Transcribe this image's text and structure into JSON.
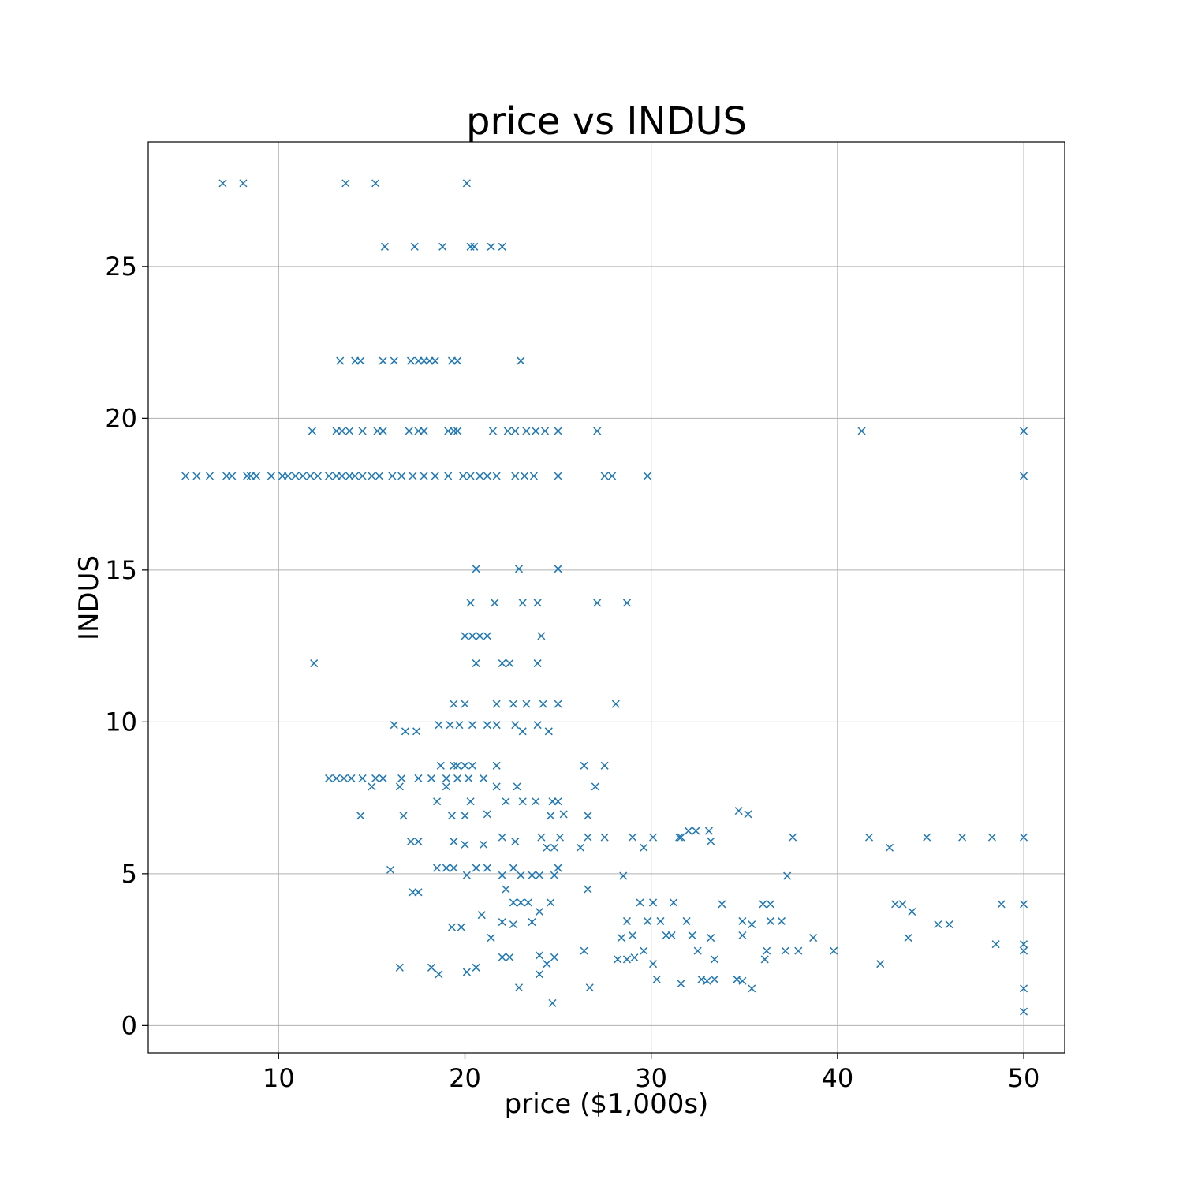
{
  "chart_data": {
    "type": "scatter",
    "title": "price vs INDUS",
    "xlabel": "price ($1,000s)",
    "ylabel": "INDUS",
    "xlim": [
      3,
      52.2
    ],
    "ylim": [
      -0.9,
      29.1
    ],
    "xticks": [
      10,
      20,
      30,
      40,
      50
    ],
    "yticks": [
      0,
      5,
      10,
      15,
      20,
      25
    ],
    "grid": true,
    "marker": "x",
    "color": "#1f77b4",
    "series": [
      {
        "points": [
          [
            7.0,
            27.74
          ],
          [
            8.1,
            27.74
          ],
          [
            13.6,
            27.74
          ],
          [
            15.2,
            27.74
          ],
          [
            20.1,
            27.74
          ],
          [
            15.7,
            25.65
          ],
          [
            17.3,
            25.65
          ],
          [
            18.8,
            25.65
          ],
          [
            20.3,
            25.65
          ],
          [
            20.5,
            25.65
          ],
          [
            21.4,
            25.65
          ],
          [
            22.0,
            25.65
          ],
          [
            13.3,
            21.89
          ],
          [
            14.1,
            21.89
          ],
          [
            14.4,
            21.89
          ],
          [
            15.6,
            21.89
          ],
          [
            16.2,
            21.89
          ],
          [
            17.1,
            21.89
          ],
          [
            17.5,
            21.89
          ],
          [
            17.8,
            21.89
          ],
          [
            18.1,
            21.89
          ],
          [
            18.4,
            21.89
          ],
          [
            19.3,
            21.89
          ],
          [
            19.6,
            21.89
          ],
          [
            23.0,
            21.89
          ],
          [
            11.8,
            19.58
          ],
          [
            13.1,
            19.58
          ],
          [
            13.4,
            19.58
          ],
          [
            13.8,
            19.58
          ],
          [
            14.5,
            19.58
          ],
          [
            15.3,
            19.58
          ],
          [
            15.6,
            19.58
          ],
          [
            17.0,
            19.58
          ],
          [
            17.5,
            19.58
          ],
          [
            17.8,
            19.58
          ],
          [
            19.1,
            19.58
          ],
          [
            19.4,
            19.58
          ],
          [
            19.6,
            19.58
          ],
          [
            21.5,
            19.58
          ],
          [
            22.3,
            19.58
          ],
          [
            22.7,
            19.58
          ],
          [
            23.3,
            19.58
          ],
          [
            23.8,
            19.58
          ],
          [
            24.3,
            19.58
          ],
          [
            25.0,
            19.58
          ],
          [
            27.1,
            19.58
          ],
          [
            41.3,
            19.58
          ],
          [
            50.0,
            19.58
          ],
          [
            5.0,
            18.1
          ],
          [
            5.6,
            18.1
          ],
          [
            6.3,
            18.1
          ],
          [
            7.2,
            18.1
          ],
          [
            7.5,
            18.1
          ],
          [
            8.3,
            18.1
          ],
          [
            8.5,
            18.1
          ],
          [
            8.8,
            18.1
          ],
          [
            9.6,
            18.1
          ],
          [
            10.2,
            18.1
          ],
          [
            10.5,
            18.1
          ],
          [
            10.9,
            18.1
          ],
          [
            11.3,
            18.1
          ],
          [
            11.7,
            18.1
          ],
          [
            12.1,
            18.1
          ],
          [
            12.7,
            18.1
          ],
          [
            13.1,
            18.1
          ],
          [
            13.4,
            18.1
          ],
          [
            13.8,
            18.1
          ],
          [
            14.1,
            18.1
          ],
          [
            14.5,
            18.1
          ],
          [
            15.0,
            18.1
          ],
          [
            15.4,
            18.1
          ],
          [
            16.1,
            18.1
          ],
          [
            16.6,
            18.1
          ],
          [
            17.2,
            18.1
          ],
          [
            17.8,
            18.1
          ],
          [
            18.4,
            18.1
          ],
          [
            19.1,
            18.1
          ],
          [
            19.9,
            18.1
          ],
          [
            20.3,
            18.1
          ],
          [
            20.8,
            18.1
          ],
          [
            21.2,
            18.1
          ],
          [
            21.7,
            18.1
          ],
          [
            22.7,
            18.1
          ],
          [
            23.2,
            18.1
          ],
          [
            23.7,
            18.1
          ],
          [
            25.0,
            18.1
          ],
          [
            27.5,
            18.1
          ],
          [
            27.9,
            18.1
          ],
          [
            29.8,
            18.1
          ],
          [
            50.0,
            18.1
          ],
          [
            20.6,
            15.04
          ],
          [
            22.9,
            15.04
          ],
          [
            25.0,
            15.04
          ],
          [
            20.3,
            13.92
          ],
          [
            21.6,
            13.92
          ],
          [
            23.1,
            13.92
          ],
          [
            23.9,
            13.92
          ],
          [
            27.1,
            13.92
          ],
          [
            28.7,
            13.92
          ],
          [
            20.0,
            12.83
          ],
          [
            20.4,
            12.83
          ],
          [
            20.8,
            12.83
          ],
          [
            21.2,
            12.83
          ],
          [
            24.1,
            12.83
          ],
          [
            11.9,
            11.93
          ],
          [
            20.6,
            11.93
          ],
          [
            22.0,
            11.93
          ],
          [
            22.4,
            11.93
          ],
          [
            23.9,
            11.93
          ],
          [
            19.4,
            10.59
          ],
          [
            20.0,
            10.59
          ],
          [
            21.7,
            10.59
          ],
          [
            22.6,
            10.59
          ],
          [
            23.3,
            10.59
          ],
          [
            24.2,
            10.59
          ],
          [
            25.0,
            10.59
          ],
          [
            28.1,
            10.59
          ],
          [
            16.2,
            9.9
          ],
          [
            16.8,
            9.69
          ],
          [
            17.4,
            9.69
          ],
          [
            18.6,
            9.9
          ],
          [
            19.2,
            9.9
          ],
          [
            19.7,
            9.9
          ],
          [
            20.4,
            9.9
          ],
          [
            21.2,
            9.9
          ],
          [
            21.7,
            9.9
          ],
          [
            22.7,
            9.9
          ],
          [
            23.1,
            9.69
          ],
          [
            23.9,
            9.9
          ],
          [
            24.5,
            9.69
          ],
          [
            12.7,
            8.14
          ],
          [
            13.1,
            8.14
          ],
          [
            13.5,
            8.14
          ],
          [
            13.9,
            8.14
          ],
          [
            14.5,
            8.14
          ],
          [
            15.2,
            8.14
          ],
          [
            15.6,
            8.14
          ],
          [
            16.6,
            8.14
          ],
          [
            17.5,
            8.14
          ],
          [
            18.2,
            8.14
          ],
          [
            19.0,
            8.14
          ],
          [
            19.6,
            8.14
          ],
          [
            20.2,
            8.14
          ],
          [
            21.0,
            8.14
          ],
          [
            18.7,
            8.56
          ],
          [
            19.4,
            8.56
          ],
          [
            19.6,
            8.56
          ],
          [
            20.0,
            8.56
          ],
          [
            20.4,
            8.56
          ],
          [
            21.7,
            8.56
          ],
          [
            26.4,
            8.56
          ],
          [
            27.5,
            8.56
          ],
          [
            15.0,
            7.87
          ],
          [
            16.5,
            7.87
          ],
          [
            19.0,
            7.87
          ],
          [
            21.7,
            7.87
          ],
          [
            22.8,
            7.87
          ],
          [
            27.0,
            7.87
          ],
          [
            18.5,
            7.38
          ],
          [
            20.3,
            7.38
          ],
          [
            22.2,
            7.38
          ],
          [
            23.1,
            7.38
          ],
          [
            23.8,
            7.38
          ],
          [
            24.7,
            7.38
          ],
          [
            25.0,
            7.38
          ],
          [
            14.4,
            6.91
          ],
          [
            16.7,
            6.91
          ],
          [
            19.3,
            6.91
          ],
          [
            20.0,
            6.91
          ],
          [
            21.2,
            6.96
          ],
          [
            24.6,
            6.91
          ],
          [
            25.3,
            6.96
          ],
          [
            26.6,
            6.91
          ],
          [
            34.7,
            7.07
          ],
          [
            35.2,
            6.96
          ],
          [
            17.1,
            6.06
          ],
          [
            17.5,
            6.06
          ],
          [
            19.4,
            6.06
          ],
          [
            20.0,
            5.96
          ],
          [
            21.0,
            5.96
          ],
          [
            22.0,
            6.2
          ],
          [
            22.7,
            6.06
          ],
          [
            24.1,
            6.2
          ],
          [
            24.4,
            5.86
          ],
          [
            24.8,
            5.86
          ],
          [
            25.1,
            6.2
          ],
          [
            26.2,
            5.86
          ],
          [
            26.6,
            6.2
          ],
          [
            27.5,
            6.2
          ],
          [
            29.0,
            6.2
          ],
          [
            29.6,
            5.86
          ],
          [
            30.1,
            6.2
          ],
          [
            31.5,
            6.2
          ],
          [
            31.6,
            6.2
          ],
          [
            32.0,
            6.41
          ],
          [
            32.4,
            6.41
          ],
          [
            33.1,
            6.41
          ],
          [
            33.2,
            6.07
          ],
          [
            37.6,
            6.2
          ],
          [
            41.7,
            6.2
          ],
          [
            42.8,
            5.86
          ],
          [
            44.8,
            6.2
          ],
          [
            46.7,
            6.2
          ],
          [
            48.3,
            6.2
          ],
          [
            50.0,
            6.2
          ],
          [
            16.0,
            5.13
          ],
          [
            18.5,
            5.19
          ],
          [
            19.0,
            5.19
          ],
          [
            19.4,
            5.19
          ],
          [
            20.1,
            4.95
          ],
          [
            20.6,
            5.19
          ],
          [
            21.2,
            5.19
          ],
          [
            22.0,
            4.95
          ],
          [
            22.6,
            5.19
          ],
          [
            23.0,
            4.95
          ],
          [
            23.6,
            4.95
          ],
          [
            24.0,
            4.95
          ],
          [
            24.8,
            4.95
          ],
          [
            25.0,
            5.19
          ],
          [
            28.5,
            4.93
          ],
          [
            37.3,
            4.93
          ],
          [
            17.2,
            4.39
          ],
          [
            17.5,
            4.39
          ],
          [
            22.2,
            4.49
          ],
          [
            22.6,
            4.05
          ],
          [
            23.0,
            4.05
          ],
          [
            23.4,
            4.05
          ],
          [
            24.6,
            4.05
          ],
          [
            26.6,
            4.49
          ],
          [
            29.4,
            4.05
          ],
          [
            30.1,
            4.05
          ],
          [
            31.2,
            4.05
          ],
          [
            33.8,
            4.0
          ],
          [
            36.0,
            4.0
          ],
          [
            36.4,
            4.0
          ],
          [
            43.1,
            4.0
          ],
          [
            43.5,
            4.0
          ],
          [
            48.8,
            4.0
          ],
          [
            50.0,
            4.0
          ],
          [
            19.3,
            3.24
          ],
          [
            19.8,
            3.24
          ],
          [
            20.9,
            3.64
          ],
          [
            22.0,
            3.41
          ],
          [
            22.6,
            3.33
          ],
          [
            23.6,
            3.41
          ],
          [
            24.0,
            3.75
          ],
          [
            28.7,
            3.44
          ],
          [
            29.8,
            3.44
          ],
          [
            30.5,
            3.44
          ],
          [
            31.9,
            3.44
          ],
          [
            34.9,
            3.44
          ],
          [
            35.4,
            3.33
          ],
          [
            36.4,
            3.44
          ],
          [
            37.0,
            3.44
          ],
          [
            44.0,
            3.75
          ],
          [
            45.4,
            3.33
          ],
          [
            46.0,
            3.33
          ],
          [
            21.4,
            2.89
          ],
          [
            28.4,
            2.89
          ],
          [
            29.0,
            2.97
          ],
          [
            30.8,
            2.97
          ],
          [
            31.1,
            2.97
          ],
          [
            32.2,
            2.97
          ],
          [
            33.2,
            2.89
          ],
          [
            34.9,
            2.97
          ],
          [
            38.7,
            2.89
          ],
          [
            43.8,
            2.89
          ],
          [
            48.5,
            2.68
          ],
          [
            50.0,
            2.68
          ],
          [
            22.0,
            2.25
          ],
          [
            22.4,
            2.25
          ],
          [
            24.0,
            2.31
          ],
          [
            24.8,
            2.25
          ],
          [
            26.4,
            2.46
          ],
          [
            28.2,
            2.18
          ],
          [
            28.7,
            2.18
          ],
          [
            29.1,
            2.24
          ],
          [
            29.6,
            2.46
          ],
          [
            32.5,
            2.46
          ],
          [
            33.4,
            2.18
          ],
          [
            36.1,
            2.18
          ],
          [
            36.2,
            2.46
          ],
          [
            37.2,
            2.46
          ],
          [
            37.9,
            2.46
          ],
          [
            39.8,
            2.46
          ],
          [
            42.3,
            2.03
          ],
          [
            50.0,
            2.46
          ],
          [
            16.5,
            1.91
          ],
          [
            18.2,
            1.91
          ],
          [
            18.6,
            1.69
          ],
          [
            20.1,
            1.76
          ],
          [
            20.6,
            1.91
          ],
          [
            24.0,
            1.69
          ],
          [
            24.4,
            2.03
          ],
          [
            30.1,
            2.03
          ],
          [
            30.3,
            1.52
          ],
          [
            31.6,
            1.38
          ],
          [
            32.7,
            1.52
          ],
          [
            33.0,
            1.47
          ],
          [
            33.4,
            1.52
          ],
          [
            34.6,
            1.52
          ],
          [
            34.9,
            1.47
          ],
          [
            22.9,
            1.25
          ],
          [
            26.7,
            1.25
          ],
          [
            35.4,
            1.22
          ],
          [
            50.0,
            1.22
          ],
          [
            24.7,
            0.74
          ],
          [
            50.0,
            0.46
          ]
        ]
      }
    ]
  }
}
